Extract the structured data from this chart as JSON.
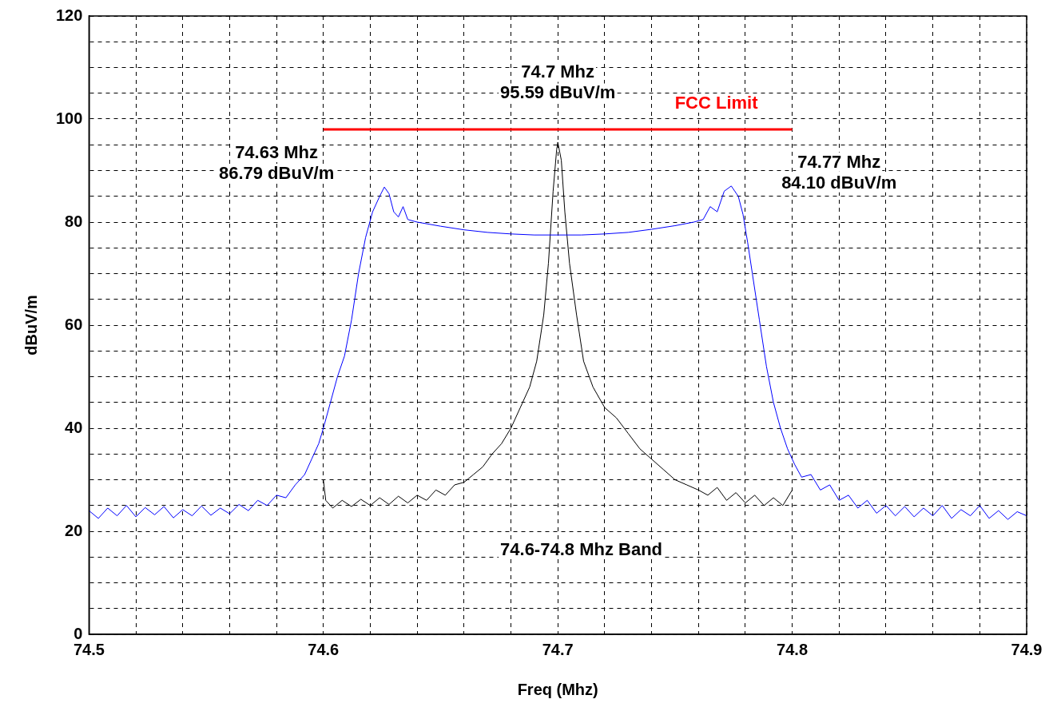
{
  "chart_data": {
    "type": "line",
    "xlabel": "Freq (Mhz)",
    "ylabel": "dBuV/m",
    "xlim": [
      74.5,
      74.9
    ],
    "xticks": [
      74.5,
      {
        "value": 74.52,
        "label": null
      },
      {
        "value": 74.54,
        "label": null
      },
      {
        "value": 74.56,
        "label": null
      },
      {
        "value": 74.58,
        "label": null
      },
      74.6,
      {
        "value": 74.62,
        "label": null
      },
      {
        "value": 74.64,
        "label": null
      },
      {
        "value": 74.66,
        "label": null
      },
      {
        "value": 74.68,
        "label": null
      },
      74.7,
      {
        "value": 74.72,
        "label": null
      },
      {
        "value": 74.74,
        "label": null
      },
      {
        "value": 74.76,
        "label": null
      },
      {
        "value": 74.78,
        "label": null
      },
      74.8,
      {
        "value": 74.82,
        "label": null
      },
      {
        "value": 74.84,
        "label": null
      },
      {
        "value": 74.86,
        "label": null
      },
      {
        "value": 74.88,
        "label": null
      },
      74.9
    ],
    "ylim": [
      0,
      120
    ],
    "yticks": [
      0,
      {
        "value": 5,
        "label": null
      },
      {
        "value": 10,
        "label": null
      },
      {
        "value": 15,
        "label": null
      },
      20,
      {
        "value": 25,
        "label": null
      },
      {
        "value": 30,
        "label": null
      },
      {
        "value": 35,
        "label": null
      },
      40,
      {
        "value": 45,
        "label": null
      },
      {
        "value": 50,
        "label": null
      },
      {
        "value": 55,
        "label": null
      },
      60,
      {
        "value": 65,
        "label": null
      },
      {
        "value": 70,
        "label": null
      },
      {
        "value": 75,
        "label": null
      },
      80,
      {
        "value": 85,
        "label": null
      },
      {
        "value": 90,
        "label": null
      },
      {
        "value": 95,
        "label": null
      },
      100,
      {
        "value": 105,
        "label": null
      },
      {
        "value": 110,
        "label": null
      },
      {
        "value": 115,
        "label": null
      },
      120
    ],
    "grid": true,
    "legend": false,
    "marker": "none",
    "series": [
      {
        "type": "line",
        "color": "#0000ff",
        "x": [
          74.5,
          74.504,
          74.508,
          74.512,
          74.516,
          74.52,
          74.524,
          74.528,
          74.532,
          74.536,
          74.54,
          74.544,
          74.548,
          74.552,
          74.556,
          74.56,
          74.564,
          74.568,
          74.572,
          74.576,
          74.58,
          74.584,
          74.588,
          74.592,
          74.595,
          74.598,
          74.6,
          74.603,
          74.606,
          74.609,
          74.612,
          74.615,
          74.618,
          74.621,
          74.624,
          74.626,
          74.628,
          74.63,
          74.632,
          74.634,
          74.636,
          74.64,
          74.65,
          74.66,
          74.67,
          74.68,
          74.69,
          74.7,
          74.71,
          74.72,
          74.73,
          74.74,
          74.75,
          74.758,
          74.762,
          74.765,
          74.768,
          74.771,
          74.774,
          74.777,
          74.779,
          74.781,
          74.783,
          74.786,
          74.789,
          74.792,
          74.795,
          74.798,
          74.801,
          74.804,
          74.808,
          74.812,
          74.816,
          74.82,
          74.824,
          74.828,
          74.832,
          74.836,
          74.84,
          74.844,
          74.848,
          74.852,
          74.856,
          74.86,
          74.864,
          74.868,
          74.872,
          74.876,
          74.88,
          74.884,
          74.888,
          74.892,
          74.896,
          74.9
        ],
        "values": [
          24,
          22.5,
          24.5,
          23,
          25,
          22.8,
          24.6,
          23.2,
          24.8,
          22.6,
          24.2,
          23,
          24.9,
          23.1,
          24.5,
          23.4,
          25.2,
          24,
          26,
          25,
          27,
          26.5,
          29,
          31,
          34,
          37,
          40,
          45,
          50,
          54,
          61,
          70,
          77,
          82,
          85,
          86.8,
          85.5,
          82,
          81,
          83,
          80.5,
          80,
          79.2,
          78.5,
          78,
          77.7,
          77.5,
          77.5,
          77.5,
          77.7,
          78,
          78.6,
          79.3,
          80,
          80.5,
          83,
          82,
          86,
          87,
          85,
          81.5,
          76,
          70,
          61,
          52,
          45,
          40,
          36,
          33,
          30.5,
          31,
          28,
          29,
          26,
          27,
          24.5,
          26,
          23.5,
          25,
          23,
          24.8,
          22.8,
          24.5,
          23,
          25,
          22.5,
          24.2,
          23,
          25,
          22.5,
          24,
          22.3,
          23.8,
          23
        ]
      },
      {
        "type": "line",
        "color": "#000000",
        "x": [
          74.6,
          74.601,
          74.604,
          74.608,
          74.612,
          74.616,
          74.62,
          74.624,
          74.628,
          74.632,
          74.636,
          74.64,
          74.644,
          74.648,
          74.652,
          74.656,
          74.66,
          74.664,
          74.668,
          74.672,
          74.676,
          74.68,
          74.684,
          74.688,
          74.691,
          74.694,
          74.696,
          74.698,
          74.6995,
          74.7,
          74.7015,
          74.703,
          74.705,
          74.708,
          74.711,
          74.715,
          74.72,
          74.725,
          74.73,
          74.735,
          74.74,
          74.745,
          74.75,
          74.755,
          74.76,
          74.764,
          74.768,
          74.772,
          74.776,
          74.78,
          74.784,
          74.788,
          74.792,
          74.796,
          74.8
        ],
        "values": [
          30,
          26,
          24.5,
          26,
          24.8,
          26.2,
          25,
          26.5,
          25.2,
          26.8,
          25.5,
          27,
          26,
          28,
          27,
          29,
          29.5,
          31,
          32.5,
          35,
          37,
          40,
          44,
          48,
          53,
          62,
          72,
          86,
          94,
          95.5,
          92,
          82,
          72,
          62,
          53,
          48,
          44,
          42,
          39,
          36,
          34,
          32,
          30,
          29,
          28,
          27,
          28.5,
          26,
          27.5,
          25.5,
          27,
          25,
          26.5,
          25,
          28
        ]
      },
      {
        "type": "line",
        "name": "FCC Limit",
        "color": "#ff0000",
        "x": [
          74.6,
          74.8
        ],
        "values": [
          98,
          98
        ]
      }
    ],
    "annotations": [
      "74.7 Mhz\n95.59 dBuV/m",
      "74.63 Mhz\n86.79 dBuV/m",
      "74.77 Mhz\n84.10 dBuV/m",
      "74.6-74.8 Mhz Band"
    ]
  }
}
